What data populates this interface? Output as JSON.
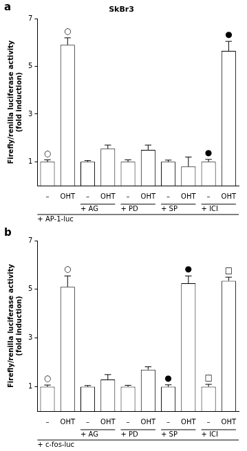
{
  "chart_data": [
    {
      "type": "bar",
      "panel": "a",
      "title": "SkBr3",
      "y_label": [
        "Firefly/renilla luciferase activity",
        "(fold induction)"
      ],
      "categories": [
        "–",
        "OHT",
        "–",
        "OHT",
        "–",
        "OHT",
        "–",
        "OHT",
        "–",
        "OHT"
      ],
      "values": [
        1.0,
        5.9,
        1.0,
        1.55,
        1.0,
        1.5,
        1.0,
        0.8,
        1.0,
        5.65
      ],
      "errors": [
        0.08,
        0.3,
        0.05,
        0.15,
        0.08,
        0.2,
        0.07,
        0.4,
        0.1,
        0.4
      ],
      "annotations": [
        "○",
        "○",
        null,
        null,
        null,
        null,
        null,
        null,
        "●",
        "●"
      ],
      "groups": [
        null,
        "+ AG",
        "+ PD",
        "+ SP",
        "+ ICI"
      ],
      "reporter": "+ AP-1-luc",
      "color": "#ffffff",
      "ylim": [
        0,
        7
      ],
      "yticks": [
        1,
        3,
        5,
        7
      ],
      "grid": false
    },
    {
      "type": "bar",
      "panel": "b",
      "y_label": [
        "Firefly/renilla luciferase activity",
        "(fold induction)"
      ],
      "categories": [
        "–",
        "OHT",
        "–",
        "OHT",
        "–",
        "OHT",
        "–",
        "OHT",
        "–",
        "OHT"
      ],
      "values": [
        1.0,
        5.1,
        1.0,
        1.3,
        1.0,
        1.7,
        1.0,
        5.25,
        1.0,
        5.35
      ],
      "errors": [
        0.07,
        0.45,
        0.05,
        0.2,
        0.06,
        0.12,
        0.08,
        0.3,
        0.1,
        0.15
      ],
      "annotations": [
        "○",
        "○",
        null,
        null,
        null,
        null,
        "●",
        "●",
        "□",
        "□"
      ],
      "groups": [
        null,
        "+ AG",
        "+ PD",
        "+ SP",
        "+ ICI"
      ],
      "reporter": "+ c-fos-luc",
      "color": "#ffffff",
      "ylim": [
        0,
        7
      ],
      "yticks": [
        1,
        3,
        5,
        7
      ],
      "grid": false
    }
  ]
}
